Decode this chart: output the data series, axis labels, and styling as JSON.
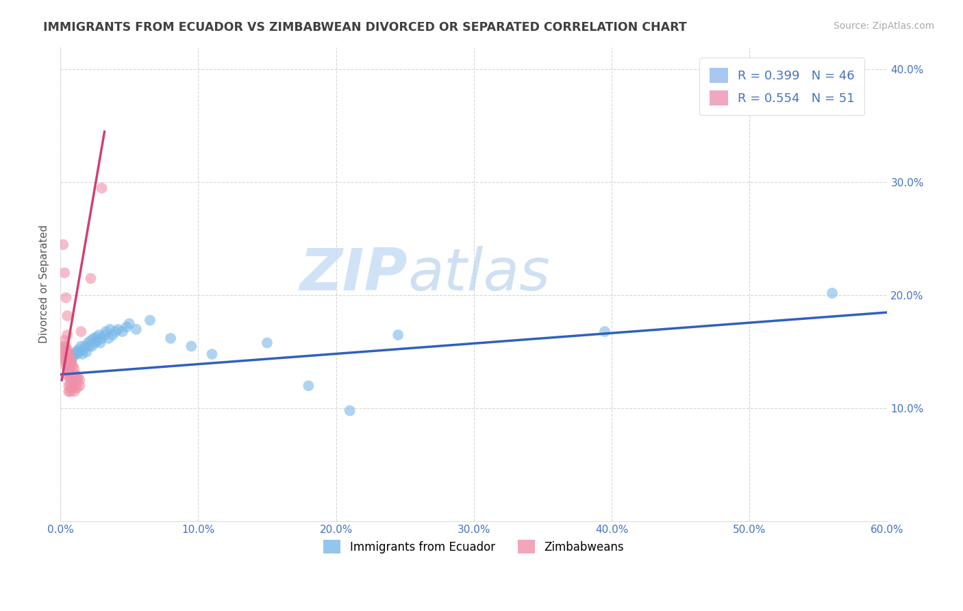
{
  "title": "IMMIGRANTS FROM ECUADOR VS ZIMBABWEAN DIVORCED OR SEPARATED CORRELATION CHART",
  "source_text": "Source: ZipAtlas.com",
  "ylabel": "Divorced or Separated",
  "xlim": [
    0.0,
    0.6
  ],
  "ylim": [
    0.0,
    0.42
  ],
  "xticks": [
    0.0,
    0.1,
    0.2,
    0.3,
    0.4,
    0.5,
    0.6
  ],
  "yticks": [
    0.0,
    0.1,
    0.2,
    0.3,
    0.4
  ],
  "xtick_labels": [
    "0.0%",
    "10.0%",
    "20.0%",
    "30.0%",
    "40.0%",
    "50.0%",
    "60.0%"
  ],
  "ytick_labels_right": [
    "",
    "10.0%",
    "20.0%",
    "30.0%",
    "40.0%"
  ],
  "legend_items": [
    {
      "label": "R = 0.399   N = 46",
      "color": "#a8c8f0"
    },
    {
      "label": "R = 0.554   N = 51",
      "color": "#f0a8c0"
    }
  ],
  "legend_label_bottom": [
    "Immigrants from Ecuador",
    "Zimbabweans"
  ],
  "blue_color": "#7ab8e8",
  "pink_color": "#f090a8",
  "blue_line_color": "#3060c0",
  "pink_line_color": "#d04070",
  "watermark_zip": "ZIP",
  "watermark_atlas": "atlas",
  "blue_scatter": [
    [
      0.005,
      0.14
    ],
    [
      0.007,
      0.138
    ],
    [
      0.008,
      0.142
    ],
    [
      0.009,
      0.145
    ],
    [
      0.01,
      0.148
    ],
    [
      0.011,
      0.15
    ],
    [
      0.012,
      0.148
    ],
    [
      0.013,
      0.152
    ],
    [
      0.014,
      0.15
    ],
    [
      0.015,
      0.155
    ],
    [
      0.016,
      0.148
    ],
    [
      0.017,
      0.152
    ],
    [
      0.018,
      0.155
    ],
    [
      0.019,
      0.15
    ],
    [
      0.02,
      0.158
    ],
    [
      0.021,
      0.155
    ],
    [
      0.022,
      0.16
    ],
    [
      0.023,
      0.155
    ],
    [
      0.024,
      0.162
    ],
    [
      0.025,
      0.158
    ],
    [
      0.026,
      0.163
    ],
    [
      0.027,
      0.16
    ],
    [
      0.028,
      0.165
    ],
    [
      0.029,
      0.158
    ],
    [
      0.03,
      0.162
    ],
    [
      0.032,
      0.165
    ],
    [
      0.033,
      0.168
    ],
    [
      0.035,
      0.162
    ],
    [
      0.036,
      0.17
    ],
    [
      0.038,
      0.165
    ],
    [
      0.04,
      0.168
    ],
    [
      0.042,
      0.17
    ],
    [
      0.045,
      0.168
    ],
    [
      0.048,
      0.172
    ],
    [
      0.05,
      0.175
    ],
    [
      0.055,
      0.17
    ],
    [
      0.065,
      0.178
    ],
    [
      0.08,
      0.162
    ],
    [
      0.095,
      0.155
    ],
    [
      0.11,
      0.148
    ],
    [
      0.15,
      0.158
    ],
    [
      0.18,
      0.12
    ],
    [
      0.21,
      0.098
    ],
    [
      0.245,
      0.165
    ],
    [
      0.395,
      0.168
    ],
    [
      0.56,
      0.202
    ]
  ],
  "pink_scatter": [
    [
      0.002,
      0.145
    ],
    [
      0.002,
      0.152
    ],
    [
      0.003,
      0.148
    ],
    [
      0.003,
      0.155
    ],
    [
      0.003,
      0.16
    ],
    [
      0.003,
      0.142
    ],
    [
      0.004,
      0.15
    ],
    [
      0.004,
      0.145
    ],
    [
      0.004,
      0.138
    ],
    [
      0.004,
      0.155
    ],
    [
      0.005,
      0.152
    ],
    [
      0.005,
      0.145
    ],
    [
      0.005,
      0.14
    ],
    [
      0.005,
      0.135
    ],
    [
      0.005,
      0.165
    ],
    [
      0.005,
      0.13
    ],
    [
      0.006,
      0.148
    ],
    [
      0.006,
      0.142
    ],
    [
      0.006,
      0.135
    ],
    [
      0.006,
      0.128
    ],
    [
      0.006,
      0.12
    ],
    [
      0.006,
      0.115
    ],
    [
      0.007,
      0.145
    ],
    [
      0.007,
      0.138
    ],
    [
      0.007,
      0.13
    ],
    [
      0.007,
      0.122
    ],
    [
      0.007,
      0.115
    ],
    [
      0.008,
      0.14
    ],
    [
      0.008,
      0.132
    ],
    [
      0.008,
      0.125
    ],
    [
      0.008,
      0.118
    ],
    [
      0.009,
      0.138
    ],
    [
      0.009,
      0.128
    ],
    [
      0.009,
      0.118
    ],
    [
      0.01,
      0.135
    ],
    [
      0.01,
      0.125
    ],
    [
      0.01,
      0.115
    ],
    [
      0.011,
      0.13
    ],
    [
      0.011,
      0.12
    ],
    [
      0.012,
      0.125
    ],
    [
      0.012,
      0.118
    ],
    [
      0.013,
      0.128
    ],
    [
      0.014,
      0.125
    ],
    [
      0.014,
      0.12
    ],
    [
      0.002,
      0.245
    ],
    [
      0.003,
      0.22
    ],
    [
      0.004,
      0.198
    ],
    [
      0.005,
      0.182
    ],
    [
      0.03,
      0.295
    ],
    [
      0.022,
      0.215
    ],
    [
      0.015,
      0.168
    ]
  ],
  "blue_line_x": [
    0.0,
    0.6
  ],
  "blue_line_y": [
    0.13,
    0.185
  ],
  "pink_line_x": [
    0.001,
    0.032
  ],
  "pink_line_y": [
    0.125,
    0.345
  ],
  "background_color": "#ffffff",
  "grid_color": "#cccccc",
  "title_color": "#404040",
  "tick_color": "#4472c4"
}
